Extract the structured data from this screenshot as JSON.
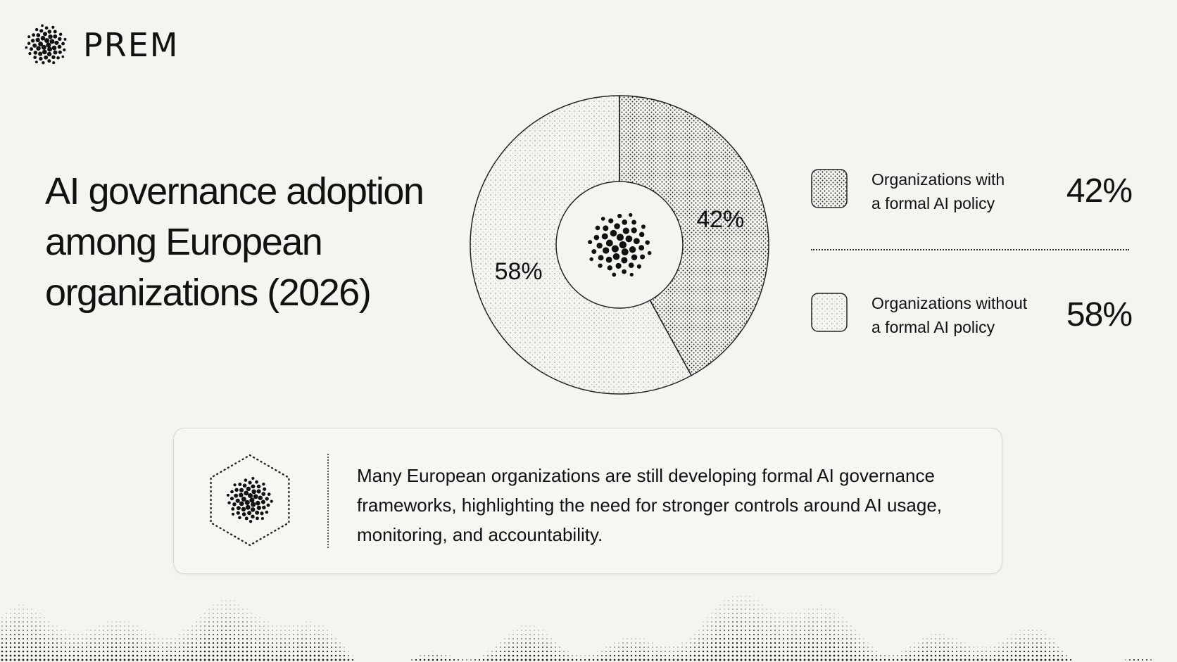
{
  "brand": {
    "name": "PREM",
    "icon": "dot-cluster-logo"
  },
  "title_lines": [
    "AI governance adoption",
    "among European",
    "organizations (2026)"
  ],
  "chart_data": {
    "type": "pie",
    "variant": "donut",
    "title": "AI governance adoption among European organizations (2026)",
    "slices": [
      {
        "label": "Organizations with a formal AI policy",
        "value": 42,
        "display": "42%",
        "pattern": "dense-dots"
      },
      {
        "label": "Organizations without a formal AI policy",
        "value": 58,
        "display": "58%",
        "pattern": "sparse-dots"
      }
    ],
    "center_icon": "dot-cluster-icon",
    "legend_position": "right"
  },
  "legend": [
    {
      "line1": "Organizations with",
      "line2": "a formal AI policy",
      "value": "42%",
      "pattern": "dense-dots"
    },
    {
      "line1": "Organizations without",
      "line2": "a formal AI policy",
      "value": "58%",
      "pattern": "sparse-dots"
    }
  ],
  "note": {
    "icon": "hexagon-dot-cluster-icon",
    "text_lines": [
      "Many European organizations are still developing formal AI governance",
      "frameworks, highlighting the need for stronger controls around AI usage,",
      "monitoring, and accountability."
    ]
  },
  "colors": {
    "background": "#f6f4f0",
    "ink": "#111111",
    "card_border": "#d9d6d0"
  }
}
